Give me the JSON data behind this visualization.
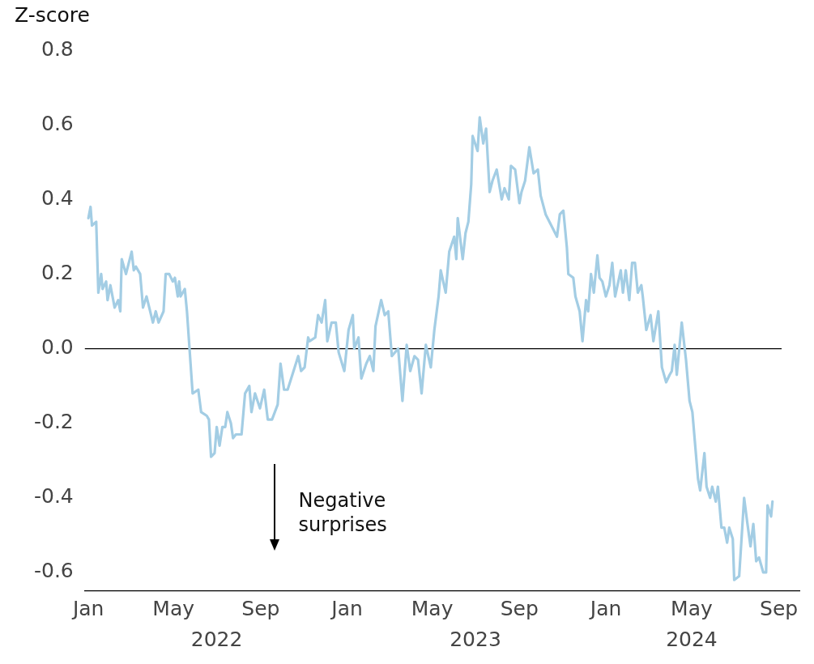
{
  "chart_data": {
    "type": "line",
    "ylabel": "Z-score",
    "xlim": [
      "2021-12-27",
      "2024-09-30"
    ],
    "ylim": [
      -0.65,
      0.8
    ],
    "yticks": [
      -0.6,
      -0.4,
      -0.2,
      {
        "value": 0,
        "label": "0.0"
      },
      0.2,
      0.4,
      0.6,
      0.8
    ],
    "xticks": [
      {
        "value": "2022-01-01",
        "label": "Jan"
      },
      {
        "value": "2022-05-01",
        "label": "May"
      },
      {
        "value": "2022-09-01",
        "label": "Sep"
      },
      {
        "value": "2023-01-01",
        "label": "Jan"
      },
      {
        "value": "2023-05-01",
        "label": "May"
      },
      {
        "value": "2023-09-01",
        "label": "Sep"
      },
      {
        "value": "2024-01-01",
        "label": "Jan"
      },
      {
        "value": "2024-05-01",
        "label": "May"
      },
      {
        "value": "2024-09-01",
        "label": "Sep"
      }
    ],
    "x2lim": [
      "2021-12-27",
      "2024-09-30"
    ],
    "x2ticks": [
      {
        "value": "2022-07-01",
        "label": "2022"
      },
      {
        "value": "2023-07-01",
        "label": "2023"
      },
      {
        "value": "2024-05-01",
        "label": "2024"
      }
    ],
    "grid": false,
    "legend": false,
    "marker": "none",
    "line_style": "solid",
    "ref_lines": [
      {
        "axis": "y",
        "value": 0,
        "color": "#000000"
      }
    ],
    "annotations": [
      "Negative surprises"
    ],
    "series": [
      {
        "color": "#a3cde4",
        "x": [
          "2022-01-01",
          "2022-01-04",
          "2022-01-06",
          "2022-01-12",
          "2022-01-15",
          "2022-01-19",
          "2022-01-21",
          "2022-01-26",
          "2022-01-28",
          "2022-02-01",
          "2022-02-07",
          "2022-02-12",
          "2022-02-15",
          "2022-02-17",
          "2022-02-23",
          "2022-03-03",
          "2022-03-06",
          "2022-03-09",
          "2022-03-15",
          "2022-03-19",
          "2022-03-24",
          "2022-04-02",
          "2022-04-06",
          "2022-04-10",
          "2022-04-17",
          "2022-04-20",
          "2022-04-25",
          "2022-04-30",
          "2022-05-03",
          "2022-05-07",
          "2022-05-09",
          "2022-05-11",
          "2022-05-17",
          "2022-05-20",
          "2022-05-28",
          "2022-06-05",
          "2022-06-09",
          "2022-06-17",
          "2022-06-20",
          "2022-06-23",
          "2022-06-28",
          "2022-07-01",
          "2022-07-05",
          "2022-07-09",
          "2022-07-13",
          "2022-07-16",
          "2022-07-21",
          "2022-07-24",
          "2022-07-28",
          "2022-08-05",
          "2022-08-10",
          "2022-08-16",
          "2022-08-19",
          "2022-08-24",
          "2022-08-31",
          "2022-09-06",
          "2022-09-11",
          "2022-09-17",
          "2022-09-25",
          "2022-09-29",
          "2022-10-04",
          "2022-10-09",
          "2022-10-14",
          "2022-10-24",
          "2022-10-28",
          "2022-11-02",
          "2022-11-07",
          "2022-11-09",
          "2022-11-17",
          "2022-11-21",
          "2022-11-26",
          "2022-12-01",
          "2022-12-04",
          "2022-12-10",
          "2022-12-16",
          "2022-12-20",
          "2022-12-28",
          "2023-01-03",
          "2023-01-09",
          "2023-01-11",
          "2023-01-17",
          "2023-01-21",
          "2023-01-28",
          "2023-02-02",
          "2023-02-07",
          "2023-02-10",
          "2023-02-18",
          "2023-02-23",
          "2023-02-28",
          "2023-03-05",
          "2023-03-14",
          "2023-03-20",
          "2023-03-26",
          "2023-03-31",
          "2023-04-06",
          "2023-04-11",
          "2023-04-16",
          "2023-04-22",
          "2023-04-29",
          "2023-05-04",
          "2023-05-10",
          "2023-05-13",
          "2023-05-20",
          "2023-05-25",
          "2023-06-01",
          "2023-06-04",
          "2023-06-06",
          "2023-06-13",
          "2023-06-17",
          "2023-06-21",
          "2023-06-25",
          "2023-06-27",
          "2023-07-04",
          "2023-07-07",
          "2023-07-12",
          "2023-07-16",
          "2023-07-21",
          "2023-07-25",
          "2023-07-31",
          "2023-08-07",
          "2023-08-11",
          "2023-08-17",
          "2023-08-20",
          "2023-08-26",
          "2023-09-01",
          "2023-09-04",
          "2023-09-09",
          "2023-09-15",
          "2023-09-21",
          "2023-09-27",
          "2023-10-01",
          "2023-10-08",
          "2023-10-16",
          "2023-10-24",
          "2023-10-28",
          "2023-11-02",
          "2023-11-07",
          "2023-11-09",
          "2023-11-16",
          "2023-11-19",
          "2023-11-25",
          "2023-11-29",
          "2023-12-04",
          "2023-12-07",
          "2023-12-11",
          "2023-12-15",
          "2023-12-20",
          "2023-12-23",
          "2023-12-27",
          "2024-01-01",
          "2024-01-06",
          "2024-01-10",
          "2024-01-14",
          "2024-01-22",
          "2024-01-25",
          "2024-01-29",
          "2024-02-03",
          "2024-02-07",
          "2024-02-11",
          "2024-02-15",
          "2024-02-20",
          "2024-02-22",
          "2024-02-27",
          "2024-03-04",
          "2024-03-08",
          "2024-03-15",
          "2024-03-20",
          "2024-03-26",
          "2024-03-31",
          "2024-04-03",
          "2024-04-07",
          "2024-04-10",
          "2024-04-17",
          "2024-04-23",
          "2024-04-28",
          "2024-05-02",
          "2024-05-10",
          "2024-05-13",
          "2024-05-19",
          "2024-05-22",
          "2024-05-27",
          "2024-05-30",
          "2024-06-04",
          "2024-06-07",
          "2024-06-12",
          "2024-06-16",
          "2024-06-20",
          "2024-06-23",
          "2024-06-28",
          "2024-06-30",
          "2024-07-07",
          "2024-07-14",
          "2024-07-18",
          "2024-07-23",
          "2024-07-27",
          "2024-07-31",
          "2024-08-04",
          "2024-08-10",
          "2024-08-14",
          "2024-08-16",
          "2024-08-21",
          "2024-08-23"
        ],
        "values": [
          0.35,
          0.38,
          0.33,
          0.34,
          0.15,
          0.2,
          0.16,
          0.18,
          0.13,
          0.17,
          0.11,
          0.13,
          0.1,
          0.24,
          0.2,
          0.26,
          0.21,
          0.22,
          0.2,
          0.11,
          0.14,
          0.07,
          0.1,
          0.07,
          0.1,
          0.2,
          0.2,
          0.18,
          0.19,
          0.14,
          0.18,
          0.14,
          0.16,
          0.1,
          -0.12,
          -0.11,
          -0.17,
          -0.18,
          -0.19,
          -0.29,
          -0.28,
          -0.21,
          -0.26,
          -0.21,
          -0.21,
          -0.17,
          -0.2,
          -0.24,
          -0.23,
          -0.23,
          -0.12,
          -0.1,
          -0.17,
          -0.12,
          -0.16,
          -0.11,
          -0.19,
          -0.19,
          -0.15,
          -0.04,
          -0.11,
          -0.11,
          -0.08,
          -0.02,
          -0.06,
          -0.05,
          0.03,
          0.02,
          0.03,
          0.09,
          0.07,
          0.13,
          0.02,
          0.07,
          0.07,
          -0.01,
          -0.06,
          0.05,
          0.09,
          0.0,
          0.03,
          -0.08,
          -0.04,
          -0.02,
          -0.06,
          0.06,
          0.13,
          0.09,
          0.1,
          -0.02,
          0.0,
          -0.14,
          0.01,
          -0.06,
          -0.02,
          -0.03,
          -0.12,
          0.01,
          -0.05,
          0.05,
          0.14,
          0.21,
          0.15,
          0.26,
          0.3,
          0.24,
          0.35,
          0.24,
          0.31,
          0.34,
          0.44,
          0.57,
          0.53,
          0.62,
          0.55,
          0.59,
          0.42,
          0.45,
          0.48,
          0.4,
          0.43,
          0.4,
          0.49,
          0.48,
          0.39,
          0.42,
          0.45,
          0.54,
          0.47,
          0.48,
          0.41,
          0.36,
          0.33,
          0.3,
          0.36,
          0.37,
          0.27,
          0.2,
          0.19,
          0.14,
          0.1,
          0.02,
          0.13,
          0.1,
          0.2,
          0.15,
          0.25,
          0.19,
          0.18,
          0.14,
          0.17,
          0.23,
          0.14,
          0.21,
          0.15,
          0.21,
          0.13,
          0.23,
          0.23,
          0.15,
          0.17,
          0.14,
          0.05,
          0.09,
          0.02,
          0.1,
          -0.05,
          -0.09,
          -0.07,
          -0.06,
          0.01,
          -0.07,
          0.07,
          -0.03,
          -0.14,
          -0.17,
          -0.35,
          -0.38,
          -0.28,
          -0.37,
          -0.4,
          -0.37,
          -0.41,
          -0.37,
          -0.48,
          -0.48,
          -0.52,
          -0.48,
          -0.51,
          -0.62,
          -0.61,
          -0.4,
          -0.46,
          -0.53,
          -0.47,
          -0.57,
          -0.56,
          -0.6,
          -0.6,
          -0.42,
          -0.45,
          -0.41
        ]
      }
    ]
  }
}
